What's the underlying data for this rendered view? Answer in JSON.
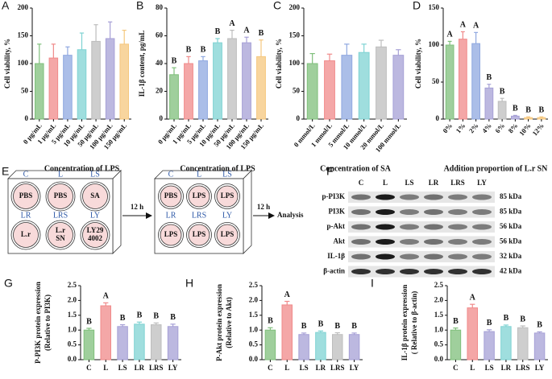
{
  "chart_data": [
    {
      "type": "bar",
      "panel": "A",
      "ylabel": "Cell viability, %",
      "xlabel": "Concentration of LPS",
      "categories": [
        "0 μg/mL",
        "1 μg/mL",
        "5 μg/mL",
        "10 μg/mL",
        "50 μg/mL",
        "100 μg/mL",
        "150 μg/mL"
      ],
      "values": [
        100,
        110,
        115,
        125,
        140,
        145,
        135
      ],
      "errors": [
        35,
        25,
        15,
        30,
        30,
        30,
        25
      ],
      "colors": [
        "#7fbf7b",
        "#f08a8a",
        "#8fa8e0",
        "#7fd3d3",
        "#bdbdbd",
        "#a6a0d6",
        "#f5c77e"
      ],
      "ylim": [
        0,
        200
      ],
      "yticks": [
        0,
        50,
        100,
        150,
        200
      ]
    },
    {
      "type": "bar",
      "panel": "B",
      "ylabel": "IL-1β content, pg/mL",
      "xlabel": "Concentration of LPS",
      "categories": [
        "0 μg/mL",
        "1 μg/mL",
        "5 μg/mL",
        "10 μg/mL",
        "50 μg/mL",
        "100 μg/mL",
        "150 μg/mL"
      ],
      "values": [
        32,
        40,
        42,
        55,
        58,
        55,
        45
      ],
      "errors": [
        5,
        5,
        3,
        3,
        6,
        4,
        12
      ],
      "letters": [
        "B",
        "B",
        "B",
        "B",
        "A",
        "A",
        "B"
      ],
      "colors": [
        "#7fbf7b",
        "#f08a8a",
        "#8fa8e0",
        "#7fd3d3",
        "#bdbdbd",
        "#a6a0d6",
        "#f5c77e"
      ],
      "ylim": [
        0,
        80
      ],
      "yticks": [
        0,
        20,
        40,
        60,
        80
      ]
    },
    {
      "type": "bar",
      "panel": "C",
      "ylabel": "Cell viability, %",
      "xlabel": "Concentration of SA",
      "categories": [
        "0 mmol/L",
        "1 mmol/L",
        "5 mmol/L",
        "10 mmol/L",
        "20 mmol/L",
        "100 mmol/L"
      ],
      "values": [
        100,
        105,
        115,
        120,
        130,
        115
      ],
      "errors": [
        18,
        12,
        20,
        15,
        12,
        10
      ],
      "colors": [
        "#7fbf7b",
        "#f08a8a",
        "#8fa8e0",
        "#7fd3d3",
        "#bdbdbd",
        "#a6a0d6"
      ],
      "ylim": [
        0,
        200
      ],
      "yticks": [
        0,
        50,
        100,
        150,
        200
      ]
    },
    {
      "type": "bar",
      "panel": "D",
      "ylabel": "Cell viability, %",
      "xlabel": "Addition proportion of L.r SN",
      "categories": [
        "0%",
        "1%",
        "2%",
        "4%",
        "6%",
        "8%",
        "10%",
        "12%"
      ],
      "values": [
        100,
        108,
        102,
        42,
        24,
        4,
        2,
        2
      ],
      "errors": [
        5,
        10,
        15,
        5,
        4,
        1,
        1,
        1
      ],
      "letters": [
        "A",
        "A",
        "A",
        "B",
        "B",
        "B",
        "B",
        "B"
      ],
      "colors": [
        "#7fbf7b",
        "#f08a8a",
        "#8fa8e0",
        "#a6a0d6",
        "#bdbdbd",
        "#a6a0d6",
        "#f5c77e",
        "#f5c77e"
      ],
      "ylim": [
        0,
        150
      ],
      "yticks": [
        0,
        50,
        100,
        150
      ]
    },
    {
      "type": "bar",
      "panel": "G",
      "ylabel": [
        "P-PI3K protein expression",
        "(Relative to PI3K)"
      ],
      "categories": [
        "C",
        "L",
        "LS",
        "LR",
        "LRS",
        "LY"
      ],
      "values": [
        1.0,
        1.82,
        1.12,
        1.2,
        1.18,
        1.12
      ],
      "errors": [
        0.06,
        0.1,
        0.06,
        0.07,
        0.06,
        0.08
      ],
      "letters": [
        "B",
        "A",
        "B",
        "B",
        "B",
        "B"
      ],
      "colors": [
        "#7fbf7b",
        "#f08a8a",
        "#a6a0d6",
        "#7fd3d3",
        "#bdbdbd",
        "#a6a0d6"
      ],
      "ylim": [
        0,
        2.5
      ],
      "yticks": [
        {
          "value": 0,
          "label": "0.0"
        },
        0.5,
        {
          "value": 1,
          "label": "1.0"
        },
        1.5,
        {
          "value": 2,
          "label": "2.0"
        },
        2.5
      ]
    },
    {
      "type": "bar",
      "panel": "H",
      "ylabel": [
        "P-Akt protein expression",
        "(Relative to Akt)"
      ],
      "categories": [
        "C",
        "L",
        "LS",
        "LR",
        "LRS",
        "LY"
      ],
      "values": [
        1.0,
        1.85,
        0.85,
        0.92,
        0.85,
        0.85
      ],
      "errors": [
        0.08,
        0.12,
        0.05,
        0.05,
        0.06,
        0.05
      ],
      "letters": [
        "B",
        "A",
        "B",
        "B",
        "B",
        "B"
      ],
      "colors": [
        "#7fbf7b",
        "#f08a8a",
        "#a6a0d6",
        "#7fd3d3",
        "#bdbdbd",
        "#a6a0d6"
      ],
      "ylim": [
        0,
        2.5
      ],
      "yticks": [
        {
          "value": 0,
          "label": "0.0"
        },
        0.5,
        {
          "value": 1,
          "label": "1.0"
        },
        1.5,
        {
          "value": 2,
          "label": "2.0"
        },
        2.5
      ]
    },
    {
      "type": "bar",
      "panel": "I",
      "ylabel": [
        "IL-1β protein expression",
        "( Relative to β-actin)"
      ],
      "categories": [
        "C",
        "L",
        "LS",
        "LR",
        "LRS",
        "LY"
      ],
      "values": [
        1.0,
        1.75,
        0.95,
        1.12,
        1.08,
        0.9
      ],
      "errors": [
        0.07,
        0.12,
        0.06,
        0.05,
        0.06,
        0.04
      ],
      "letters": [
        "B",
        "A",
        "B",
        "B",
        "B",
        "B"
      ],
      "colors": [
        "#7fbf7b",
        "#f08a8a",
        "#a6a0d6",
        "#7fd3d3",
        "#bdbdbd",
        "#a6a0d6"
      ],
      "ylim": [
        0,
        2.5
      ],
      "yticks": [
        {
          "value": 0,
          "label": "0.0"
        },
        0.5,
        {
          "value": 1,
          "label": "1.0"
        },
        1.5,
        {
          "value": 2,
          "label": "2.0"
        },
        2.5
      ]
    }
  ],
  "diagram": {
    "panel": "E",
    "plate1": {
      "top_labels": [
        "C",
        "L",
        "LS"
      ],
      "bottom_labels": [
        "LR",
        "LRS",
        "LY"
      ],
      "wells": [
        [
          "PBS"
        ],
        [
          "PBS"
        ],
        [
          "SA"
        ],
        [
          "L.r"
        ],
        [
          "L.r",
          "SN"
        ],
        [
          "LY29",
          "4002"
        ]
      ]
    },
    "step1": "12 h",
    "plate2": {
      "top_labels": [
        "C",
        "L",
        "LS"
      ],
      "bottom_labels": [
        "LR",
        "LRS",
        "LY"
      ],
      "wells": [
        "PBS",
        "LPS",
        "LPS",
        "LPS",
        "LPS",
        "LPS"
      ]
    },
    "step2": "12 h",
    "end": "Analysis"
  },
  "blot": {
    "panel": "F",
    "lanes": [
      "C",
      "L",
      "LS",
      "LR",
      "LRS",
      "LY"
    ],
    "rows": [
      {
        "name": "p-PI3K",
        "size": "85 kDa"
      },
      {
        "name": "PI3K",
        "size": "85 kDa"
      },
      {
        "name": "p-Akt",
        "size": "56 kDa"
      },
      {
        "name": "Akt",
        "size": "56 kDa"
      },
      {
        "name": "IL-1β",
        "size": "32 kDa"
      },
      {
        "name": "β-actin",
        "size": "42 kDa"
      }
    ]
  }
}
